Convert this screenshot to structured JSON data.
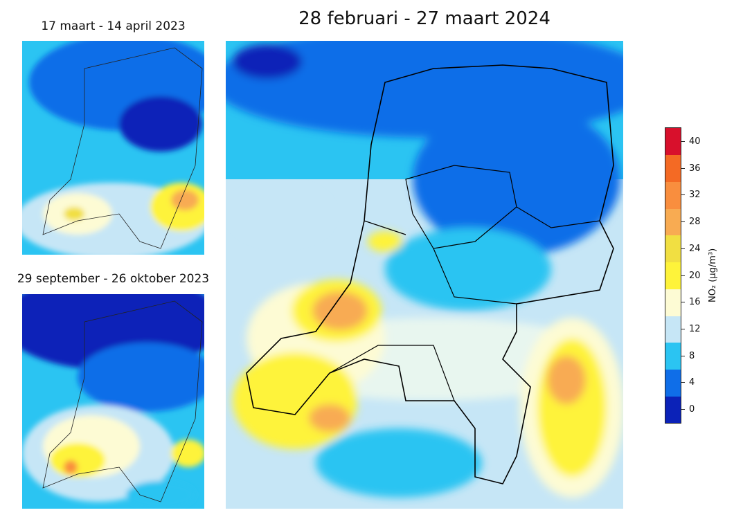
{
  "titles": {
    "main": "28 februari - 27 maart 2024",
    "top_left": "17 maart - 14 april 2023",
    "bottom_left": "29 september - 26 oktober 2023"
  },
  "colorbar": {
    "label": "NO₂ (μg/m³)",
    "ticks": [
      "0",
      "4",
      "8",
      "12",
      "16",
      "20",
      "24",
      "28",
      "32",
      "36",
      "40"
    ],
    "range": [
      -2,
      42
    ],
    "bands": [
      {
        "from": -2,
        "to": 2,
        "color": "#0b22b8"
      },
      {
        "from": 2,
        "to": 6,
        "color": "#0f6ee8"
      },
      {
        "from": 6,
        "to": 10,
        "color": "#2bc4f2"
      },
      {
        "from": 10,
        "to": 14,
        "color": "#c6e6f6"
      },
      {
        "from": 14,
        "to": 18,
        "color": "#fdfbd4"
      },
      {
        "from": 18,
        "to": 22,
        "color": "#fef33a"
      },
      {
        "from": 22,
        "to": 26,
        "color": "#f1df42"
      },
      {
        "from": 26,
        "to": 30,
        "color": "#f8ab52"
      },
      {
        "from": 30,
        "to": 34,
        "color": "#f98e3e"
      },
      {
        "from": 34,
        "to": 38,
        "color": "#f46a24"
      },
      {
        "from": 38,
        "to": 42,
        "color": "#d8102c"
      }
    ]
  }
}
